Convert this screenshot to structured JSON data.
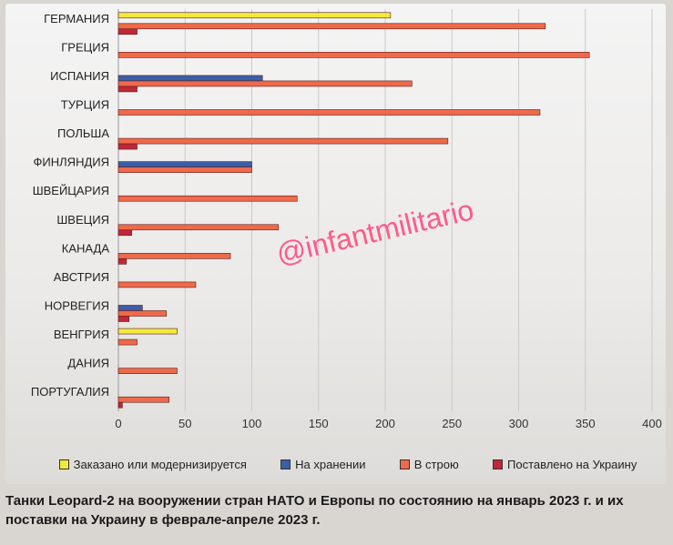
{
  "caption": "Танки Leopard-2 на вооружении стран НАТО и Европы по состоянию на январь 2023 г. и их поставки на Украину в феврале-апреле 2023 г.",
  "watermark": "@infantmilitario",
  "chart_data": {
    "type": "bar",
    "orientation": "horizontal",
    "title": "",
    "xlabel": "",
    "ylabel": "",
    "xlim": [
      0,
      400
    ],
    "xticks": [
      0,
      50,
      100,
      150,
      200,
      250,
      300,
      350,
      400
    ],
    "grid": true,
    "legend_position": "bottom",
    "categories": [
      "ГЕРМАНИЯ",
      "ГРЕЦИЯ",
      "ИСПАНИЯ",
      "ТУРЦИЯ",
      "ПОЛЬША",
      "ФИНЛЯНДИЯ",
      "ШВЕЙЦАРИЯ",
      "ШВЕЦИЯ",
      "КАНАДА",
      "АВСТРИЯ",
      "НОРВЕГИЯ",
      "ВЕНГРИЯ",
      "ДАНИЯ",
      "ПОРТУГАЛИЯ"
    ],
    "series": [
      {
        "name": "Заказано или модернизируется",
        "color": "#f2ea3a",
        "values": [
          204,
          0,
          0,
          0,
          0,
          0,
          0,
          0,
          0,
          0,
          0,
          44,
          0,
          0
        ]
      },
      {
        "name": "На хранении",
        "color": "#3a5ea8",
        "values": [
          0,
          0,
          108,
          0,
          0,
          100,
          0,
          0,
          0,
          0,
          18,
          0,
          0,
          0
        ]
      },
      {
        "name": "В строю",
        "color": "#ee6a4a",
        "values": [
          320,
          353,
          220,
          316,
          247,
          100,
          134,
          120,
          84,
          58,
          36,
          14,
          44,
          38
        ]
      },
      {
        "name": "Поставлено на Украину",
        "color": "#c0283a",
        "values": [
          14,
          0,
          14,
          0,
          14,
          0,
          0,
          10,
          6,
          0,
          8,
          0,
          0,
          3
        ]
      }
    ]
  }
}
